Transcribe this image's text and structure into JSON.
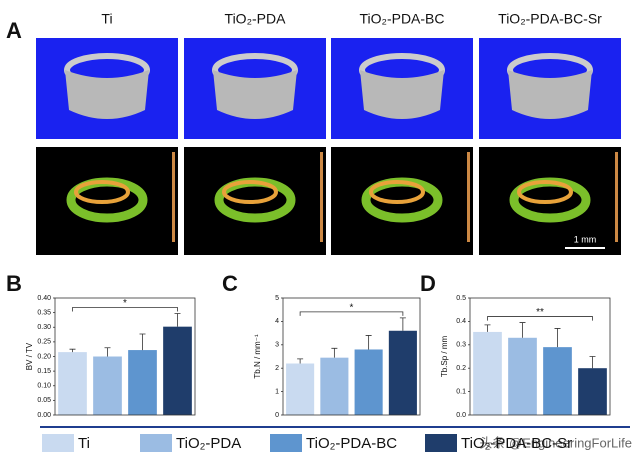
{
  "panel_a": {
    "label": "A",
    "columns": [
      "Ti",
      "TiO₂-PDA",
      "TiO₂-PDA-BC",
      "TiO₂-PDA-BC-Sr"
    ],
    "scale_bar": "1 mm"
  },
  "chart_data": [
    {
      "type": "bar",
      "label": "B",
      "ylabel": "BV / TV",
      "values": [
        0.215,
        0.2,
        0.222,
        0.302
      ],
      "errors": [
        0.01,
        0.03,
        0.055,
        0.045
      ],
      "ylim": [
        0,
        0.4
      ],
      "yticks": [
        {
          "value": 0,
          "label": "0.00"
        },
        0.05,
        {
          "value": 0.1,
          "label": "0.10"
        },
        0.15,
        {
          "value": 0.2,
          "label": "0.20"
        },
        0.25,
        {
          "value": 0.3,
          "label": "0.30"
        },
        0.35,
        {
          "value": 0.4,
          "label": "0.40"
        }
      ],
      "annotation": "*"
    },
    {
      "type": "bar",
      "label": "C",
      "ylabel": "Tb.N / mm⁻¹",
      "values": [
        2.2,
        2.45,
        2.8,
        3.6
      ],
      "errors": [
        0.2,
        0.4,
        0.6,
        0.55
      ],
      "ylim": [
        0,
        5
      ],
      "yticks": [
        0,
        1,
        2,
        3,
        4,
        5
      ],
      "annotation": "*"
    },
    {
      "type": "bar",
      "label": "D",
      "ylabel": "Tb.Sp / mm",
      "values": [
        0.355,
        0.33,
        0.29,
        0.2
      ],
      "errors": [
        0.03,
        0.065,
        0.08,
        0.05
      ],
      "ylim": [
        0,
        0.5
      ],
      "yticks": [
        {
          "value": 0,
          "label": "0.0"
        },
        0.1,
        0.2,
        0.3,
        0.4,
        0.5
      ],
      "annotation": "**"
    }
  ],
  "legend": {
    "items": [
      {
        "name": "Ti",
        "color": "#c9daf0"
      },
      {
        "name": "TiO₂-PDA",
        "color": "#9bbce3"
      },
      {
        "name": "TiO₂-PDA-BC",
        "color": "#5e95cf"
      },
      {
        "name": "TiO₂-PDA-BC-Sr",
        "color": "#1f3d6b"
      }
    ]
  },
  "watermark": "头条 @EngineeringForLife"
}
